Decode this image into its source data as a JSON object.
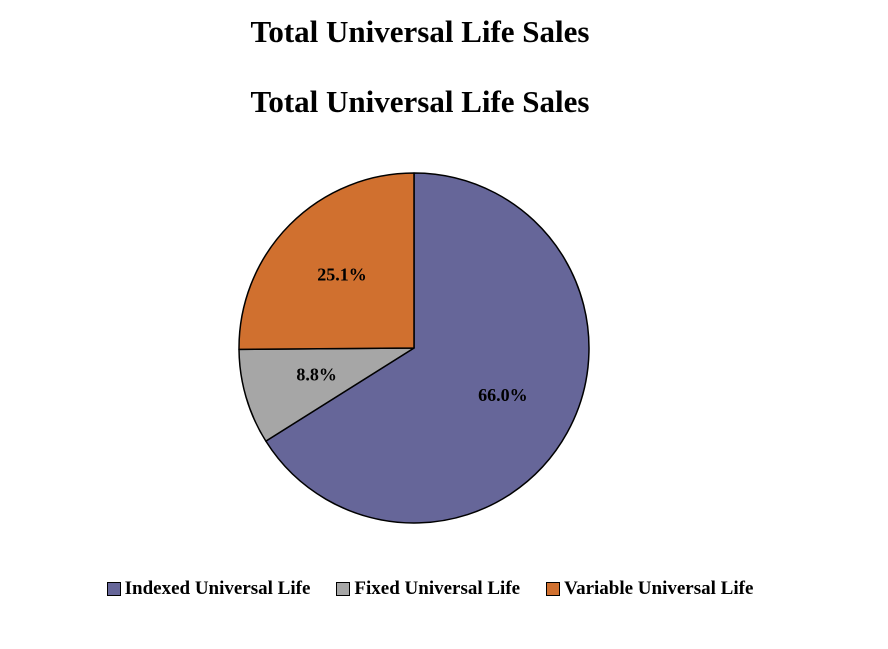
{
  "chart_data": {
    "type": "pie",
    "title": "Total Universal Life Sales",
    "subtitle": "Total Universal Life Sales",
    "categories": [
      "Indexed Universal Life",
      "Fixed Universal Life",
      "Variable Universal Life"
    ],
    "values": [
      66.0,
      8.8,
      25.1
    ],
    "data_labels": [
      "66.0%",
      "8.8%",
      "25.1%"
    ],
    "colors": [
      "#666699",
      "#a6a6a6",
      "#d0702f"
    ],
    "start_angle": "12 o'clock, clockwise",
    "legend": "bottom"
  }
}
